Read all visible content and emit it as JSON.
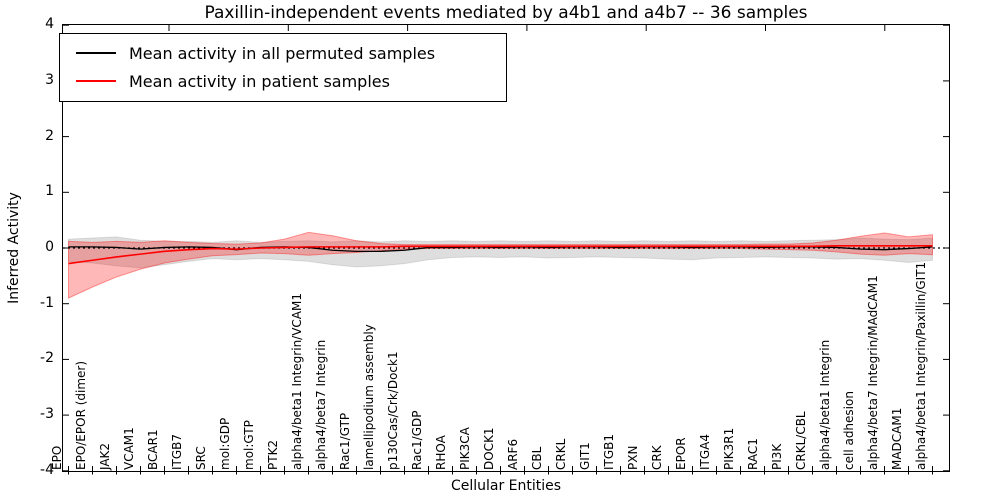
{
  "chart_data": {
    "type": "line",
    "title": "Paxillin-independent events mediated by a4b1 and a4b7 -- 36 samples",
    "xlabel": "Cellular Entities",
    "ylabel": "Inferred Activity",
    "ylim": [
      -4,
      4
    ],
    "yticks": [
      4,
      3,
      2,
      1,
      0,
      -1,
      -2,
      -3,
      -4
    ],
    "grid": false,
    "legend_position": "upper left",
    "zero_line": {
      "style": "dotted",
      "color": "#000000",
      "y": 0
    },
    "categories": [
      "EPO",
      "EPO/EPOR (dimer)",
      "JAK2",
      "VCAM1",
      "BCAR1",
      "ITGB7",
      "SRC",
      "mol:GDP",
      "mol:GTP",
      "PTK2",
      "alpha4/beta1 Integrin/VCAM1",
      "alpha4/beta7 Integrin",
      "Rac1/GTP",
      "lamellipodium assembly",
      "p130Cas/Crk/Dock1",
      "Rac1/GDP",
      "RHOA",
      "PIK3CA",
      "DOCK1",
      "ARF6",
      "CBL",
      "CRKL",
      "GIT1",
      "ITGB1",
      "PXN",
      "CRK",
      "EPOR",
      "ITGA4",
      "PIK3R1",
      "RAC1",
      "PI3K",
      "CRKL/CBL",
      "alpha4/beta1 Integrin",
      "cell adhesion",
      "alpha4/beta7 Integrin/MAdCAM1",
      "MADCAM1",
      "alpha4/beta1 Integrin/Paxillin/GIT1"
    ],
    "series": [
      {
        "name": "Mean activity in all permuted samples",
        "color": "#000000",
        "values": [
          0.02,
          0.02,
          0.01,
          -0.02,
          0.01,
          0.02,
          0.01,
          -0.03,
          0.01,
          0.02,
          0.01,
          -0.04,
          -0.06,
          -0.06,
          -0.04,
          0.01,
          0.01,
          0.02,
          0.01,
          0.02,
          0.01,
          0.02,
          0.02,
          0.01,
          0.02,
          0.02,
          0.01,
          0.02,
          0.02,
          0.01,
          0.02,
          0.02,
          0.01,
          -0.02,
          -0.03,
          -0.01,
          0.02
        ],
        "band": {
          "fill": "rgba(0,0,0,0.13)",
          "edge": "rgba(0,0,0,0.10)",
          "upper": [
            0.16,
            0.18,
            0.2,
            0.14,
            0.12,
            0.12,
            0.1,
            0.13,
            0.1,
            0.12,
            0.13,
            0.11,
            0.13,
            0.11,
            0.13,
            0.12,
            0.13,
            0.12,
            0.13,
            0.12,
            0.13,
            0.12,
            0.13,
            0.12,
            0.13,
            0.12,
            0.13,
            0.12,
            0.13,
            0.12,
            0.13,
            0.14,
            0.15,
            0.18,
            0.16,
            0.15,
            0.18
          ],
          "lower": [
            -0.24,
            -0.27,
            -0.32,
            -0.36,
            -0.3,
            -0.24,
            -0.19,
            -0.21,
            -0.19,
            -0.21,
            -0.24,
            -0.3,
            -0.34,
            -0.32,
            -0.28,
            -0.21,
            -0.17,
            -0.16,
            -0.17,
            -0.16,
            -0.18,
            -0.17,
            -0.16,
            -0.17,
            -0.18,
            -0.2,
            -0.21,
            -0.18,
            -0.17,
            -0.16,
            -0.17,
            -0.18,
            -0.2,
            -0.19,
            -0.22,
            -0.26,
            -0.22
          ]
        }
      },
      {
        "name": "Mean activity in patient samples",
        "color": "#ff0000",
        "values": [
          -0.28,
          -0.22,
          -0.16,
          -0.11,
          -0.06,
          -0.03,
          -0.01,
          -0.02,
          0.0,
          0.01,
          0.02,
          0.02,
          0.02,
          0.02,
          0.03,
          0.03,
          0.03,
          0.03,
          0.03,
          0.03,
          0.03,
          0.03,
          0.03,
          0.03,
          0.03,
          0.03,
          0.03,
          0.03,
          0.03,
          0.03,
          0.03,
          0.03,
          0.04,
          0.04,
          0.04,
          0.04,
          0.04
        ],
        "band": {
          "fill": "rgba(255,0,0,0.28)",
          "edge": "rgba(255,0,0,0.38)",
          "upper": [
            0.12,
            0.1,
            0.12,
            0.1,
            0.13,
            0.1,
            0.08,
            0.07,
            0.09,
            0.16,
            0.28,
            0.22,
            0.13,
            0.08,
            0.06,
            0.06,
            0.06,
            0.06,
            0.06,
            0.06,
            0.06,
            0.06,
            0.06,
            0.06,
            0.06,
            0.06,
            0.06,
            0.06,
            0.06,
            0.07,
            0.07,
            0.09,
            0.14,
            0.21,
            0.27,
            0.2,
            0.24
          ],
          "lower": [
            -0.9,
            -0.7,
            -0.52,
            -0.38,
            -0.27,
            -0.2,
            -0.14,
            -0.12,
            -0.09,
            -0.1,
            -0.13,
            -0.1,
            -0.08,
            -0.05,
            -0.02,
            -0.01,
            -0.01,
            -0.01,
            -0.01,
            -0.01,
            -0.01,
            -0.01,
            -0.01,
            -0.01,
            -0.01,
            -0.01,
            -0.01,
            -0.01,
            -0.01,
            -0.02,
            -0.03,
            -0.04,
            -0.07,
            -0.11,
            -0.13,
            -0.1,
            -0.12
          ]
        }
      }
    ]
  }
}
